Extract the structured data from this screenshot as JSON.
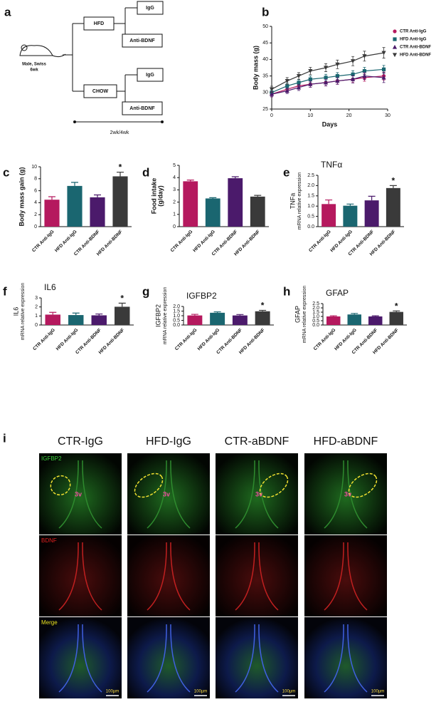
{
  "diagram": {
    "panel": "a",
    "animal": [
      "Male, Swiss",
      "6wk"
    ],
    "diets": [
      "HFD",
      "CHOW"
    ],
    "treatments": [
      [
        "IgG",
        "Anti-BDNF"
      ],
      [
        "IgG",
        "Anti-BDNF"
      ]
    ],
    "timeline": "2wk/4wk"
  },
  "chart_data": [
    {
      "type": "line",
      "panel": "b",
      "xlabel": "Days",
      "ylabel": [
        "Body mass (g)"
      ],
      "xlim": [
        0,
        30
      ],
      "xticks": [
        0,
        10,
        20,
        30
      ],
      "ylim": [
        25,
        50
      ],
      "yticks": [
        25,
        30,
        35,
        40,
        45,
        50
      ],
      "x": [
        0,
        4,
        7,
        10,
        14,
        17,
        21,
        24,
        29
      ],
      "series": [
        {
          "name": "CTR Anti-IgG",
          "color": "#b5195e",
          "marker": "circle",
          "values": [
            29.5,
            31,
            32,
            32.5,
            33,
            33.5,
            34,
            34.5,
            35
          ],
          "errors": [
            0.8,
            0.8,
            0.9,
            0.9,
            1,
            1,
            1,
            1.1,
            1.2
          ]
        },
        {
          "name": "HFD Anti-IgG",
          "color": "#1a6670",
          "marker": "square",
          "values": [
            30,
            32,
            33,
            34,
            34.5,
            35,
            35.5,
            36.5,
            37
          ],
          "errors": [
            0.8,
            0.9,
            0.9,
            1,
            1,
            1,
            1.1,
            1.1,
            1.2
          ]
        },
        {
          "name": "CTR Anti-BDNF",
          "color": "#4b1a6b",
          "marker": "triangle",
          "values": [
            29.5,
            30.5,
            31.5,
            32.5,
            33,
            33.5,
            34,
            35,
            34.5
          ],
          "errors": [
            0.8,
            0.8,
            0.9,
            0.9,
            1,
            1,
            1.1,
            1.1,
            1.5
          ]
        },
        {
          "name": "HFD Anti-BDNF",
          "color": "#3a3a3a",
          "marker": "triangle-down",
          "values": [
            31,
            33.5,
            35,
            36.5,
            37.5,
            38.5,
            39.5,
            41,
            42
          ],
          "errors": [
            0.9,
            1,
            1,
            1.1,
            1.2,
            1.3,
            1.4,
            1.5,
            1.6
          ]
        }
      ]
    },
    {
      "type": "bar",
      "panel": "c",
      "ylabel": [
        "Body mass gain (g)"
      ],
      "categories": [
        "CTR Anti-IgG",
        "HFD Anti-IgG",
        "CTR Anti-BDNF",
        "HFD Anti-BDNF"
      ],
      "colors": [
        "#b5195e",
        "#1a6670",
        "#4b1a6b",
        "#3a3a3a"
      ],
      "values": [
        4.5,
        6.8,
        4.9,
        8.4
      ],
      "errors": [
        0.5,
        0.6,
        0.4,
        0.7
      ],
      "ylim": [
        0,
        10
      ],
      "yticks": [
        0,
        2,
        4,
        6,
        8,
        10
      ],
      "annotations": [
        {
          "text": "*",
          "category": "HFD Anti-BDNF"
        }
      ]
    },
    {
      "type": "bar",
      "panel": "d",
      "ylabel": [
        "Food intake",
        "(g/day)"
      ],
      "categories": [
        "CTR Anti-IgG",
        "HFD Anti-IgG",
        "CTR Anti-BDNF",
        "HFD Anti-BDNF"
      ],
      "colors": [
        "#b5195e",
        "#1a6670",
        "#4b1a6b",
        "#3a3a3a"
      ],
      "values": [
        3.7,
        2.3,
        3.95,
        2.45
      ],
      "errors": [
        0.1,
        0.06,
        0.12,
        0.1
      ],
      "ylim": [
        0,
        5
      ],
      "yticks": [
        0,
        1,
        2,
        3,
        4,
        5
      ]
    },
    {
      "type": "bar",
      "panel": "e",
      "title": "TNFα",
      "ylabel": [
        "TNFa",
        "mRNA relative expression"
      ],
      "categories": [
        "CTR Anti-IgG",
        "HFD Anti-IgG",
        "CTR Anti-BDNF",
        "HFD Anti-BDNF"
      ],
      "colors": [
        "#b5195e",
        "#1a6670",
        "#4b1a6b",
        "#3a3a3a"
      ],
      "values": [
        1.1,
        1.02,
        1.28,
        1.88
      ],
      "errors": [
        0.2,
        0.08,
        0.2,
        0.12
      ],
      "ylim": [
        0,
        2.5
      ],
      "yticks": [
        {
          "value": 0,
          "label": "0.0"
        },
        0.5,
        {
          "value": 1,
          "label": "1.0"
        },
        1.5,
        {
          "value": 2,
          "label": "2.0"
        },
        2.5
      ],
      "annotations": [
        {
          "text": "*",
          "category": "HFD Anti-BDNF"
        }
      ]
    },
    {
      "type": "bar",
      "panel": "f",
      "title": "IL6",
      "ylabel": [
        "IL6",
        "mRNA relative expression"
      ],
      "categories": [
        "CTR Anti-IgG",
        "HFD Anti-IgG",
        "CTR Anti-BDNF",
        "HFD Anti-BDNF"
      ],
      "colors": [
        "#b5195e",
        "#1a6670",
        "#4b1a6b",
        "#3a3a3a"
      ],
      "values": [
        1.15,
        1.1,
        1.07,
        2.02
      ],
      "errors": [
        0.25,
        0.22,
        0.15,
        0.4
      ],
      "ylim": [
        0,
        3
      ],
      "yticks": [
        0,
        1,
        2,
        3
      ],
      "annotations": [
        {
          "text": "*",
          "category": "HFD Anti-BDNF"
        }
      ]
    },
    {
      "type": "bar",
      "panel": "g",
      "title": "IGFBP2",
      "ylabel": [
        "IGFBP2",
        "mRNA relative expression"
      ],
      "categories": [
        "CTR Anti-IgG",
        "HFD Anti-IgG",
        "CTR Anti-BDNF",
        "HFD Anti-BDNF"
      ],
      "colors": [
        "#b5195e",
        "#1a6670",
        "#4b1a6b",
        "#3a3a3a"
      ],
      "values": [
        1.03,
        1.32,
        1.03,
        1.48
      ],
      "errors": [
        0.12,
        0.1,
        0.1,
        0.1
      ],
      "ylim": [
        0,
        2
      ],
      "yticks": [
        {
          "value": 0,
          "label": "0.0"
        },
        0.5,
        {
          "value": 1,
          "label": "1.0"
        },
        1.5,
        {
          "value": 2,
          "label": "2.0"
        }
      ],
      "annotations": [
        {
          "text": "*",
          "category": "HFD Anti-BDNF"
        }
      ]
    },
    {
      "type": "bar",
      "panel": "h",
      "title": "GFAP",
      "ylabel": [
        "GFAP",
        "mRNA relative expression"
      ],
      "categories": [
        "CTR Anti-IgG",
        "HFD Anti-IgG",
        "CTR Anti-BDNF",
        "HFD Anti-BDNF"
      ],
      "colors": [
        "#b5195e",
        "#1a6670",
        "#4b1a6b",
        "#3a3a3a"
      ],
      "values": [
        1.0,
        1.23,
        1.0,
        1.53
      ],
      "errors": [
        0.08,
        0.12,
        0.07,
        0.12
      ],
      "ylim": [
        0,
        2.5
      ],
      "yticks": [
        {
          "value": 0,
          "label": "0.0"
        },
        0.5,
        {
          "value": 1,
          "label": "1.0"
        },
        1.5,
        {
          "value": 2,
          "label": "2.0"
        },
        2.5
      ],
      "annotations": [
        {
          "text": "*",
          "category": "HFD Anti-BDNF"
        }
      ]
    }
  ],
  "micrographs": {
    "panel": "i",
    "columns": [
      "CTR-IgG",
      "HFD-IgG",
      "CTR-aBDNF",
      "HFD-aBDNF"
    ],
    "rows": [
      {
        "label": "IGFBP2",
        "color": "#3fd23f"
      },
      {
        "label": "BDNF",
        "color": "#e02020"
      },
      {
        "label": "Merge",
        "color": "#e8e020"
      }
    ],
    "region_labels": [
      "3v",
      "3v",
      "3v",
      "3v"
    ],
    "scale_bars": [
      "100µm",
      "100µm",
      "100µm",
      "100µm"
    ]
  }
}
